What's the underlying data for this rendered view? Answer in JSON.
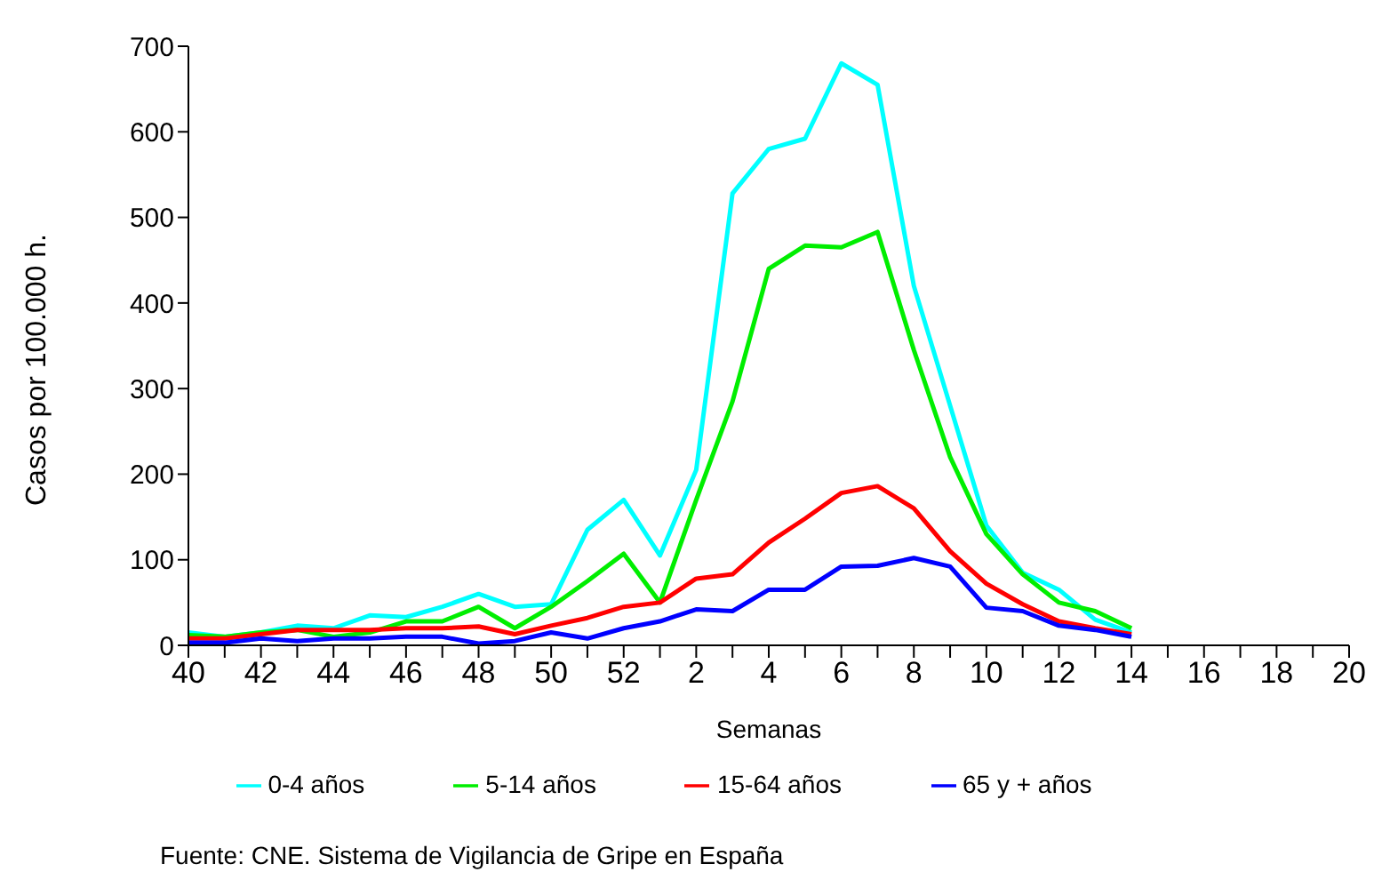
{
  "chart_data": {
    "type": "line",
    "xlabel": "Semanas",
    "ylabel": "Casos por 100.000 h.",
    "categories": [
      "40",
      null,
      "42",
      null,
      "44",
      null,
      "46",
      null,
      "48",
      null,
      "50",
      null,
      "52",
      null,
      "2",
      null,
      "4",
      null,
      "6",
      null,
      "8",
      null,
      "10",
      null,
      "12",
      null,
      "14",
      null,
      "16",
      null,
      "18",
      null,
      "20"
    ],
    "series": [
      {
        "name": "0-4 años",
        "color": "#00ffff",
        "values": [
          15,
          10,
          15,
          23,
          20,
          35,
          33,
          45,
          60,
          45,
          48,
          135,
          170,
          105,
          205,
          528,
          580,
          592,
          680,
          655,
          420,
          280,
          140,
          85,
          65,
          30,
          15,
          null,
          null,
          null,
          null,
          null,
          null
        ]
      },
      {
        "name": "5-14 años",
        "color": "#00ee00",
        "values": [
          12,
          10,
          15,
          18,
          10,
          15,
          28,
          28,
          45,
          20,
          45,
          75,
          107,
          50,
          170,
          285,
          440,
          467,
          465,
          483,
          345,
          220,
          130,
          83,
          50,
          40,
          20,
          null,
          null,
          null,
          null,
          null,
          null
        ]
      },
      {
        "name": "15-64 años",
        "color": "#ff0000",
        "values": [
          8,
          8,
          13,
          18,
          18,
          18,
          20,
          20,
          22,
          13,
          23,
          32,
          45,
          50,
          78,
          83,
          120,
          148,
          178,
          186,
          160,
          110,
          72,
          48,
          28,
          20,
          13,
          null,
          null,
          null,
          null,
          null,
          null
        ]
      },
      {
        "name": "65 y + años",
        "color": "#0000ff",
        "values": [
          3,
          3,
          8,
          5,
          8,
          8,
          10,
          10,
          2,
          5,
          15,
          8,
          20,
          28,
          42,
          40,
          65,
          65,
          92,
          93,
          102,
          92,
          44,
          40,
          23,
          18,
          10,
          null,
          null,
          null,
          null,
          null,
          null
        ]
      }
    ],
    "ylim": [
      0,
      700
    ],
    "yticks": [
      0,
      100,
      200,
      300,
      400,
      500,
      600,
      700
    ],
    "grid": false,
    "legend": "bottom",
    "marker": "none",
    "line_style": "solid",
    "annotations": [
      "Fuente: CNE. Sistema de Vigilancia de Gripe en España"
    ]
  }
}
